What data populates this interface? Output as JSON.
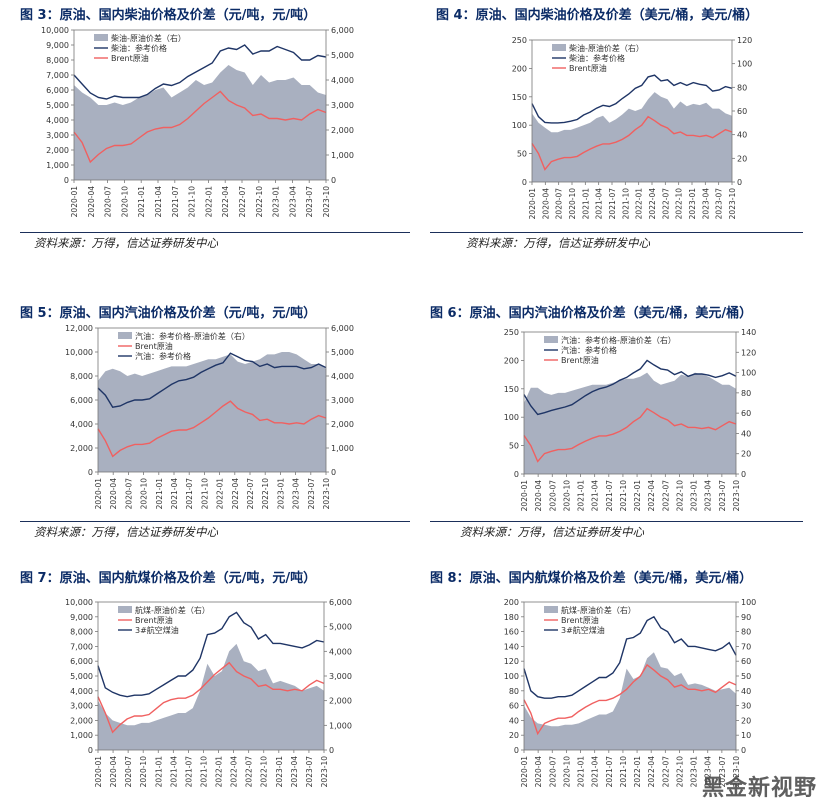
{
  "figures": [
    {
      "title": "图 3：原油、国内柴油价格及价差（元/吨，元/吨）"
    },
    {
      "title": "图 4：原油、国内柴油价格及价差（美元/桶，美元/桶）"
    },
    {
      "title": "图 5：原油、国内汽油价格及价差（元/吨，元/吨）"
    },
    {
      "title": "图 6：原油、国内汽油价格及价差（美元/桶，美元/桶）"
    },
    {
      "title": "图 7：原油、国内航煤价格及价差（元/吨，元/吨）"
    },
    {
      "title": "图 8：原油、国内航煤价格及价差（美元/桶，美元/桶）"
    }
  ],
  "sources": [
    "资料来源：万得，信达证券研发中心",
    "资料来源：万得，信达证券研发中心",
    "资料来源：万得，信达证券研发中心",
    "资料来源：万得，信达证券研发中心"
  ],
  "watermark": "黑金新视野",
  "colors": {
    "spread": "#a9b0c0",
    "product": "#1f3566",
    "brent": "#f06060",
    "title": "#0b2b66"
  },
  "x_ticks": [
    "2020-01",
    "2020-04",
    "2020-07",
    "2020-10",
    "2021-01",
    "2021-04",
    "2021-07",
    "2021-10",
    "2022-01",
    "2022-04",
    "2022-07",
    "2022-10",
    "2023-01",
    "2023-04",
    "2023-07",
    "2023-10"
  ],
  "chart_data": [
    {
      "type": "line",
      "chart": "fig3",
      "x_ticks": [
        "2020-01",
        "2020-04",
        "2020-07",
        "2020-10",
        "2021-01",
        "2021-04",
        "2021-07",
        "2021-10",
        "2022-01",
        "2022-04",
        "2022-07",
        "2022-10",
        "2023-01",
        "2023-04",
        "2023-07",
        "2023-10"
      ],
      "ylim": [
        0,
        10000
      ],
      "yticks": [
        "0",
        "1,000",
        "2,000",
        "3,000",
        "4,000",
        "5,000",
        "6,000",
        "7,000",
        "8,000",
        "9,000",
        "10,000"
      ],
      "y2lim": [
        0,
        6000
      ],
      "y2ticks": [
        "0",
        "1,000",
        "2,000",
        "3,000",
        "4,000",
        "5,000",
        "6,000"
      ],
      "legend": [
        "柴油-原油价差（右）",
        "柴油：参考价格",
        "Brent原油"
      ],
      "series": [
        {
          "name": "柴油-原油价差（右）",
          "axis": "right",
          "kind": "area",
          "values": [
            3800,
            3500,
            3300,
            3000,
            3000,
            3100,
            3000,
            3100,
            3300,
            3400,
            3600,
            3700,
            3300,
            3500,
            3700,
            4000,
            3800,
            3900,
            4300,
            4600,
            4400,
            4300,
            3800,
            4200,
            3900,
            4000,
            4000,
            4100,
            3800,
            3800,
            3500,
            3400
          ]
        },
        {
          "name": "柴油：参考价格",
          "axis": "left",
          "kind": "line",
          "values": [
            7000,
            6400,
            5800,
            5500,
            5400,
            5600,
            5500,
            5500,
            5500,
            5700,
            6100,
            6400,
            6300,
            6500,
            6900,
            7200,
            7500,
            7800,
            8600,
            8800,
            8700,
            9000,
            8400,
            8600,
            8600,
            8900,
            8700,
            8500,
            8000,
            8000,
            8300,
            8200
          ]
        },
        {
          "name": "Brent原油",
          "axis": "left",
          "kind": "line",
          "values": [
            3200,
            2500,
            1200,
            1700,
            2100,
            2300,
            2300,
            2400,
            2800,
            3200,
            3400,
            3500,
            3500,
            3700,
            4100,
            4600,
            5100,
            5500,
            5900,
            5300,
            5000,
            4800,
            4300,
            4400,
            4100,
            4100,
            4000,
            4100,
            4000,
            4400,
            4700,
            4500
          ]
        }
      ]
    },
    {
      "type": "line",
      "chart": "fig4",
      "x_ticks": [
        "2020-01",
        "2020-04",
        "2020-07",
        "2020-10",
        "2021-01",
        "2021-04",
        "2021-07",
        "2021-10",
        "2022-01",
        "2022-04",
        "2022-07",
        "2022-10",
        "2023-01",
        "2023-04",
        "2023-07",
        "2023-10"
      ],
      "ylim": [
        0,
        250
      ],
      "yticks": [
        "0",
        "50",
        "100",
        "150",
        "200",
        "250"
      ],
      "y2lim": [
        0,
        120
      ],
      "y2ticks": [
        "0",
        "20",
        "40",
        "60",
        "80",
        "100",
        "120"
      ],
      "legend": [
        "柴油-原油价差（右）",
        "柴油：参考价格",
        "Brent原油"
      ],
      "series": [
        {
          "name": "柴油-原油价差（右）",
          "axis": "right",
          "kind": "area",
          "values": [
            58,
            50,
            46,
            42,
            42,
            44,
            44,
            46,
            48,
            50,
            54,
            56,
            50,
            53,
            57,
            62,
            60,
            62,
            70,
            76,
            72,
            70,
            62,
            68,
            64,
            66,
            65,
            67,
            62,
            62,
            58,
            56
          ]
        },
        {
          "name": "柴油：参考价格",
          "axis": "left",
          "kind": "line",
          "values": [
            138,
            115,
            105,
            104,
            104,
            105,
            107,
            110,
            118,
            123,
            130,
            135,
            133,
            138,
            147,
            155,
            165,
            170,
            185,
            188,
            178,
            180,
            170,
            175,
            170,
            175,
            172,
            170,
            160,
            162,
            168,
            165
          ]
        },
        {
          "name": "Brent原油",
          "axis": "left",
          "kind": "line",
          "values": [
            68,
            50,
            22,
            36,
            40,
            43,
            43,
            45,
            52,
            58,
            63,
            67,
            67,
            70,
            75,
            82,
            92,
            100,
            115,
            108,
            100,
            95,
            85,
            88,
            82,
            82,
            80,
            82,
            78,
            85,
            92,
            88
          ]
        }
      ]
    },
    {
      "type": "line",
      "chart": "fig5",
      "x_ticks": [
        "2020-01",
        "2020-04",
        "2020-07",
        "2020-10",
        "2021-01",
        "2021-04",
        "2021-07",
        "2021-10",
        "2022-01",
        "2022-04",
        "2022-07",
        "2022-10",
        "2023-01",
        "2023-04",
        "2023-07",
        "2023-10"
      ],
      "ylim": [
        0,
        12000
      ],
      "yticks": [
        "0",
        "2,000",
        "4,000",
        "6,000",
        "8,000",
        "10,000",
        "12,000"
      ],
      "y2lim": [
        0,
        6000
      ],
      "y2ticks": [
        "0",
        "1,000",
        "2,000",
        "3,000",
        "4,000",
        "5,000",
        "6,000"
      ],
      "legend": [
        "汽油：参考价格-原油价差（右）",
        "Brent原油",
        "汽油：参考价格"
      ],
      "series": [
        {
          "name": "汽油：参考价格-原油价差（右）",
          "axis": "right",
          "kind": "area",
          "values": [
            3800,
            4200,
            4300,
            4200,
            4000,
            4100,
            4000,
            4100,
            4200,
            4300,
            4400,
            4400,
            4400,
            4500,
            4600,
            4700,
            4700,
            4800,
            4900,
            4600,
            4500,
            4600,
            4700,
            4900,
            4900,
            5000,
            5000,
            4900,
            4700,
            4500,
            4500,
            4300
          ]
        },
        {
          "name": "Brent原油",
          "axis": "left",
          "kind": "line",
          "values": [
            3600,
            2600,
            1300,
            1800,
            2100,
            2300,
            2300,
            2400,
            2800,
            3100,
            3400,
            3500,
            3500,
            3700,
            4100,
            4500,
            5000,
            5500,
            5900,
            5300,
            5000,
            4800,
            4300,
            4400,
            4100,
            4100,
            4000,
            4100,
            4000,
            4400,
            4700,
            4500
          ]
        },
        {
          "name": "汽油：参考价格",
          "axis": "left",
          "kind": "line",
          "values": [
            7000,
            6400,
            5400,
            5500,
            5800,
            6000,
            6000,
            6100,
            6500,
            6900,
            7300,
            7600,
            7700,
            7900,
            8300,
            8600,
            8900,
            9100,
            9900,
            9600,
            9300,
            9200,
            8800,
            9000,
            8700,
            8800,
            8800,
            8800,
            8600,
            8700,
            9000,
            8700
          ]
        }
      ]
    },
    {
      "type": "line",
      "chart": "fig6",
      "x_ticks": [
        "2020-01",
        "2020-04",
        "2020-07",
        "2020-10",
        "2021-01",
        "2021-04",
        "2021-07",
        "2021-10",
        "2022-01",
        "2022-04",
        "2022-07",
        "2022-10",
        "2023-01",
        "2023-04",
        "2023-07",
        "2023-10"
      ],
      "ylim": [
        0,
        250
      ],
      "yticks": [
        "0",
        "50",
        "100",
        "150",
        "200",
        "250"
      ],
      "y2lim": [
        0,
        140
      ],
      "y2ticks": [
        "0",
        "20",
        "40",
        "60",
        "80",
        "100",
        "120",
        "140"
      ],
      "legend": [
        "汽油：参考价格-原油价差（右）",
        "汽油：参考价格",
        "Brent原油"
      ],
      "series": [
        {
          "name": "汽油：参考价格-原油价差（右）",
          "axis": "right",
          "kind": "area",
          "values": [
            70,
            85,
            85,
            80,
            78,
            80,
            80,
            82,
            84,
            86,
            88,
            88,
            88,
            90,
            92,
            94,
            94,
            96,
            100,
            92,
            88,
            90,
            92,
            98,
            96,
            100,
            98,
            96,
            92,
            88,
            88,
            84
          ]
        },
        {
          "name": "汽油：参考价格",
          "axis": "left",
          "kind": "line",
          "values": [
            140,
            120,
            105,
            108,
            112,
            115,
            118,
            122,
            130,
            138,
            145,
            150,
            153,
            158,
            165,
            170,
            178,
            185,
            200,
            192,
            185,
            183,
            175,
            180,
            172,
            176,
            176,
            174,
            170,
            173,
            178,
            172
          ]
        },
        {
          "name": "Brent原油",
          "axis": "left",
          "kind": "line",
          "values": [
            68,
            50,
            22,
            36,
            40,
            43,
            43,
            45,
            52,
            58,
            63,
            67,
            67,
            70,
            75,
            82,
            92,
            100,
            115,
            108,
            100,
            95,
            85,
            88,
            82,
            82,
            80,
            82,
            78,
            85,
            92,
            88
          ]
        }
      ]
    },
    {
      "type": "line",
      "chart": "fig7",
      "x_ticks": [
        "2020-01",
        "2020-04",
        "2020-07",
        "2020-10",
        "2021-01",
        "2021-04",
        "2021-07",
        "2021-10",
        "2022-01",
        "2022-04",
        "2022-07",
        "2022-10",
        "2023-01",
        "2023-04",
        "2023-07",
        "2023-10"
      ],
      "ylim": [
        0,
        10000
      ],
      "yticks": [
        "0",
        "1,000",
        "2,000",
        "3,000",
        "4,000",
        "5,000",
        "6,000",
        "7,000",
        "8,000",
        "9,000",
        "10,000"
      ],
      "y2lim": [
        0,
        6000
      ],
      "y2ticks": [
        "0",
        "1,000",
        "2,000",
        "3,000",
        "4,000",
        "5,000",
        "6,000"
      ],
      "legend": [
        "航煤-原油价差（右）",
        "Brent原油",
        "3#航空煤油"
      ],
      "series": [
        {
          "name": "航煤-原油价差（右）",
          "axis": "right",
          "kind": "area",
          "values": [
            2000,
            1500,
            1200,
            1100,
            1000,
            1000,
            1100,
            1100,
            1200,
            1300,
            1400,
            1500,
            1500,
            1700,
            2400,
            3500,
            3000,
            3200,
            4000,
            4300,
            3600,
            3500,
            3200,
            3300,
            2700,
            2800,
            2700,
            2600,
            2400,
            2500,
            2600,
            2400
          ]
        },
        {
          "name": "Brent原油",
          "axis": "left",
          "kind": "line",
          "values": [
            3600,
            2500,
            1200,
            1700,
            2100,
            2300,
            2300,
            2400,
            2800,
            3200,
            3400,
            3500,
            3500,
            3700,
            4100,
            4600,
            5100,
            5500,
            5900,
            5300,
            5000,
            4800,
            4300,
            4400,
            4100,
            4100,
            4000,
            4100,
            4000,
            4400,
            4700,
            4500
          ]
        },
        {
          "name": "3#航空煤油",
          "axis": "left",
          "kind": "line",
          "values": [
            5700,
            4200,
            3900,
            3700,
            3600,
            3700,
            3700,
            3800,
            4100,
            4400,
            4700,
            5000,
            5000,
            5400,
            6200,
            7800,
            7900,
            8200,
            9000,
            9300,
            8600,
            8300,
            7500,
            7800,
            7200,
            7200,
            7100,
            7000,
            6900,
            7100,
            7400,
            7300
          ]
        }
      ]
    },
    {
      "type": "line",
      "chart": "fig8",
      "x_ticks": [
        "2020-01",
        "2020-04",
        "2020-07",
        "2020-10",
        "2021-01",
        "2021-04",
        "2021-07",
        "2021-10",
        "2022-01",
        "2022-04",
        "2022-07",
        "2022-10",
        "2023-01",
        "2023-04",
        "2023-07",
        "2023-10"
      ],
      "ylim": [
        0,
        200
      ],
      "yticks": [
        "0",
        "20",
        "40",
        "60",
        "80",
        "100",
        "120",
        "140",
        "160",
        "180",
        "200"
      ],
      "y2lim": [
        0,
        100
      ],
      "y2ticks": [
        "0",
        "10",
        "20",
        "30",
        "40",
        "50",
        "60",
        "70",
        "80",
        "90",
        "100"
      ],
      "legend": [
        "航煤-原油价差（右）",
        "Brent原油",
        "3#航空煤油"
      ],
      "series": [
        {
          "name": "航煤-原油价差（右）",
          "axis": "right",
          "kind": "area",
          "values": [
            30,
            22,
            18,
            17,
            16,
            16,
            17,
            17,
            18,
            20,
            22,
            24,
            24,
            26,
            35,
            55,
            48,
            50,
            62,
            66,
            56,
            55,
            50,
            52,
            44,
            45,
            44,
            42,
            40,
            41,
            42,
            38
          ]
        },
        {
          "name": "Brent原油",
          "axis": "left",
          "kind": "line",
          "values": [
            68,
            50,
            22,
            36,
            40,
            43,
            43,
            45,
            52,
            58,
            63,
            67,
            67,
            70,
            75,
            82,
            92,
            100,
            115,
            108,
            100,
            95,
            85,
            88,
            82,
            82,
            80,
            82,
            78,
            85,
            92,
            88
          ]
        },
        {
          "name": "3#航空煤油",
          "axis": "left",
          "kind": "line",
          "values": [
            110,
            80,
            72,
            70,
            70,
            72,
            72,
            74,
            80,
            86,
            92,
            98,
            98,
            104,
            118,
            150,
            152,
            158,
            175,
            180,
            165,
            160,
            145,
            150,
            140,
            140,
            138,
            136,
            134,
            138,
            145,
            128
          ]
        }
      ]
    }
  ]
}
